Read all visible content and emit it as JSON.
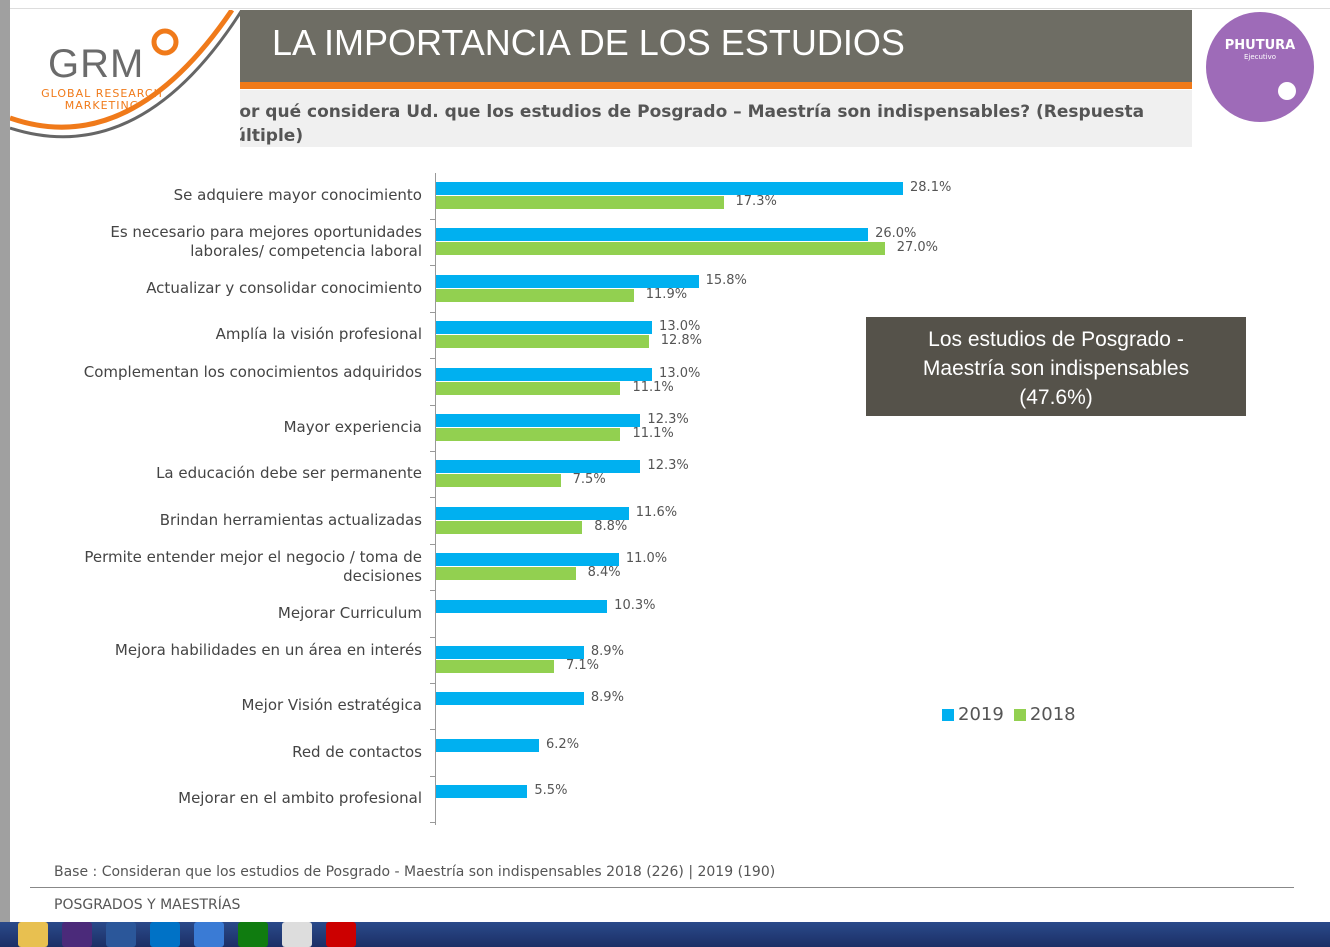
{
  "header": {
    "title": "LA IMPORTANCIA DE LOS ESTUDIOS",
    "subtitle": "¿Por qué considera Ud. que los estudios de Posgrado – Maestría son indispensables? (Respuesta Múltiple)"
  },
  "logos": {
    "left": "GRM",
    "left_sub": "GLOBAL RESEARCH MARKETING",
    "right": "PHUTURA",
    "right_sub": "Ejecutivo"
  },
  "chart_data": {
    "type": "bar",
    "orientation": "horizontal",
    "categories": [
      "Se adquiere mayor conocimiento",
      "Es necesario para mejores oportunidades laborales/ competencia laboral",
      "Actualizar y consolidar conocimiento",
      "Amplía la visión profesional",
      "Complementan los conocimientos adquiridos",
      "Mayor experiencia",
      "La educación debe ser permanente",
      "Brindan herramientas actualizadas",
      "Permite entender mejor el negocio / toma de decisiones",
      "Mejorar Curriculum",
      "Mejora habilidades en un área en interés",
      "Mejor Visión estratégica",
      "Red de contactos",
      "Mejorar en el ambito profesional"
    ],
    "series": [
      {
        "name": "2019",
        "color": "#00b0f0",
        "values": [
          28.1,
          26.0,
          15.8,
          13.0,
          13.0,
          12.3,
          12.3,
          11.6,
          11.0,
          10.3,
          8.9,
          8.9,
          6.2,
          5.5
        ]
      },
      {
        "name": "2018",
        "color": "#92d050",
        "values": [
          17.3,
          27.0,
          11.9,
          12.8,
          11.1,
          11.1,
          7.5,
          8.8,
          8.4,
          null,
          7.1,
          null,
          null,
          null
        ]
      }
    ],
    "value_format": "%",
    "legend": "right",
    "grid": false
  },
  "callout": {
    "line1": "Los estudios de Posgrado -",
    "line2": "Maestría son indispensables",
    "line3": "(47.6%)"
  },
  "footer": {
    "base": "Base : Consideran que los estudios de Posgrado - Maestría son indispensables 2018 (226) | 2019 (190)",
    "section": "POSGRADOS Y MAESTRÍAS"
  },
  "taskbar": {
    "icons": [
      "folder-icon",
      "incopy-icon",
      "word-icon",
      "outlook-icon",
      "ie-icon",
      "store-icon",
      "chrome-icon",
      "acrobat-icon"
    ]
  }
}
